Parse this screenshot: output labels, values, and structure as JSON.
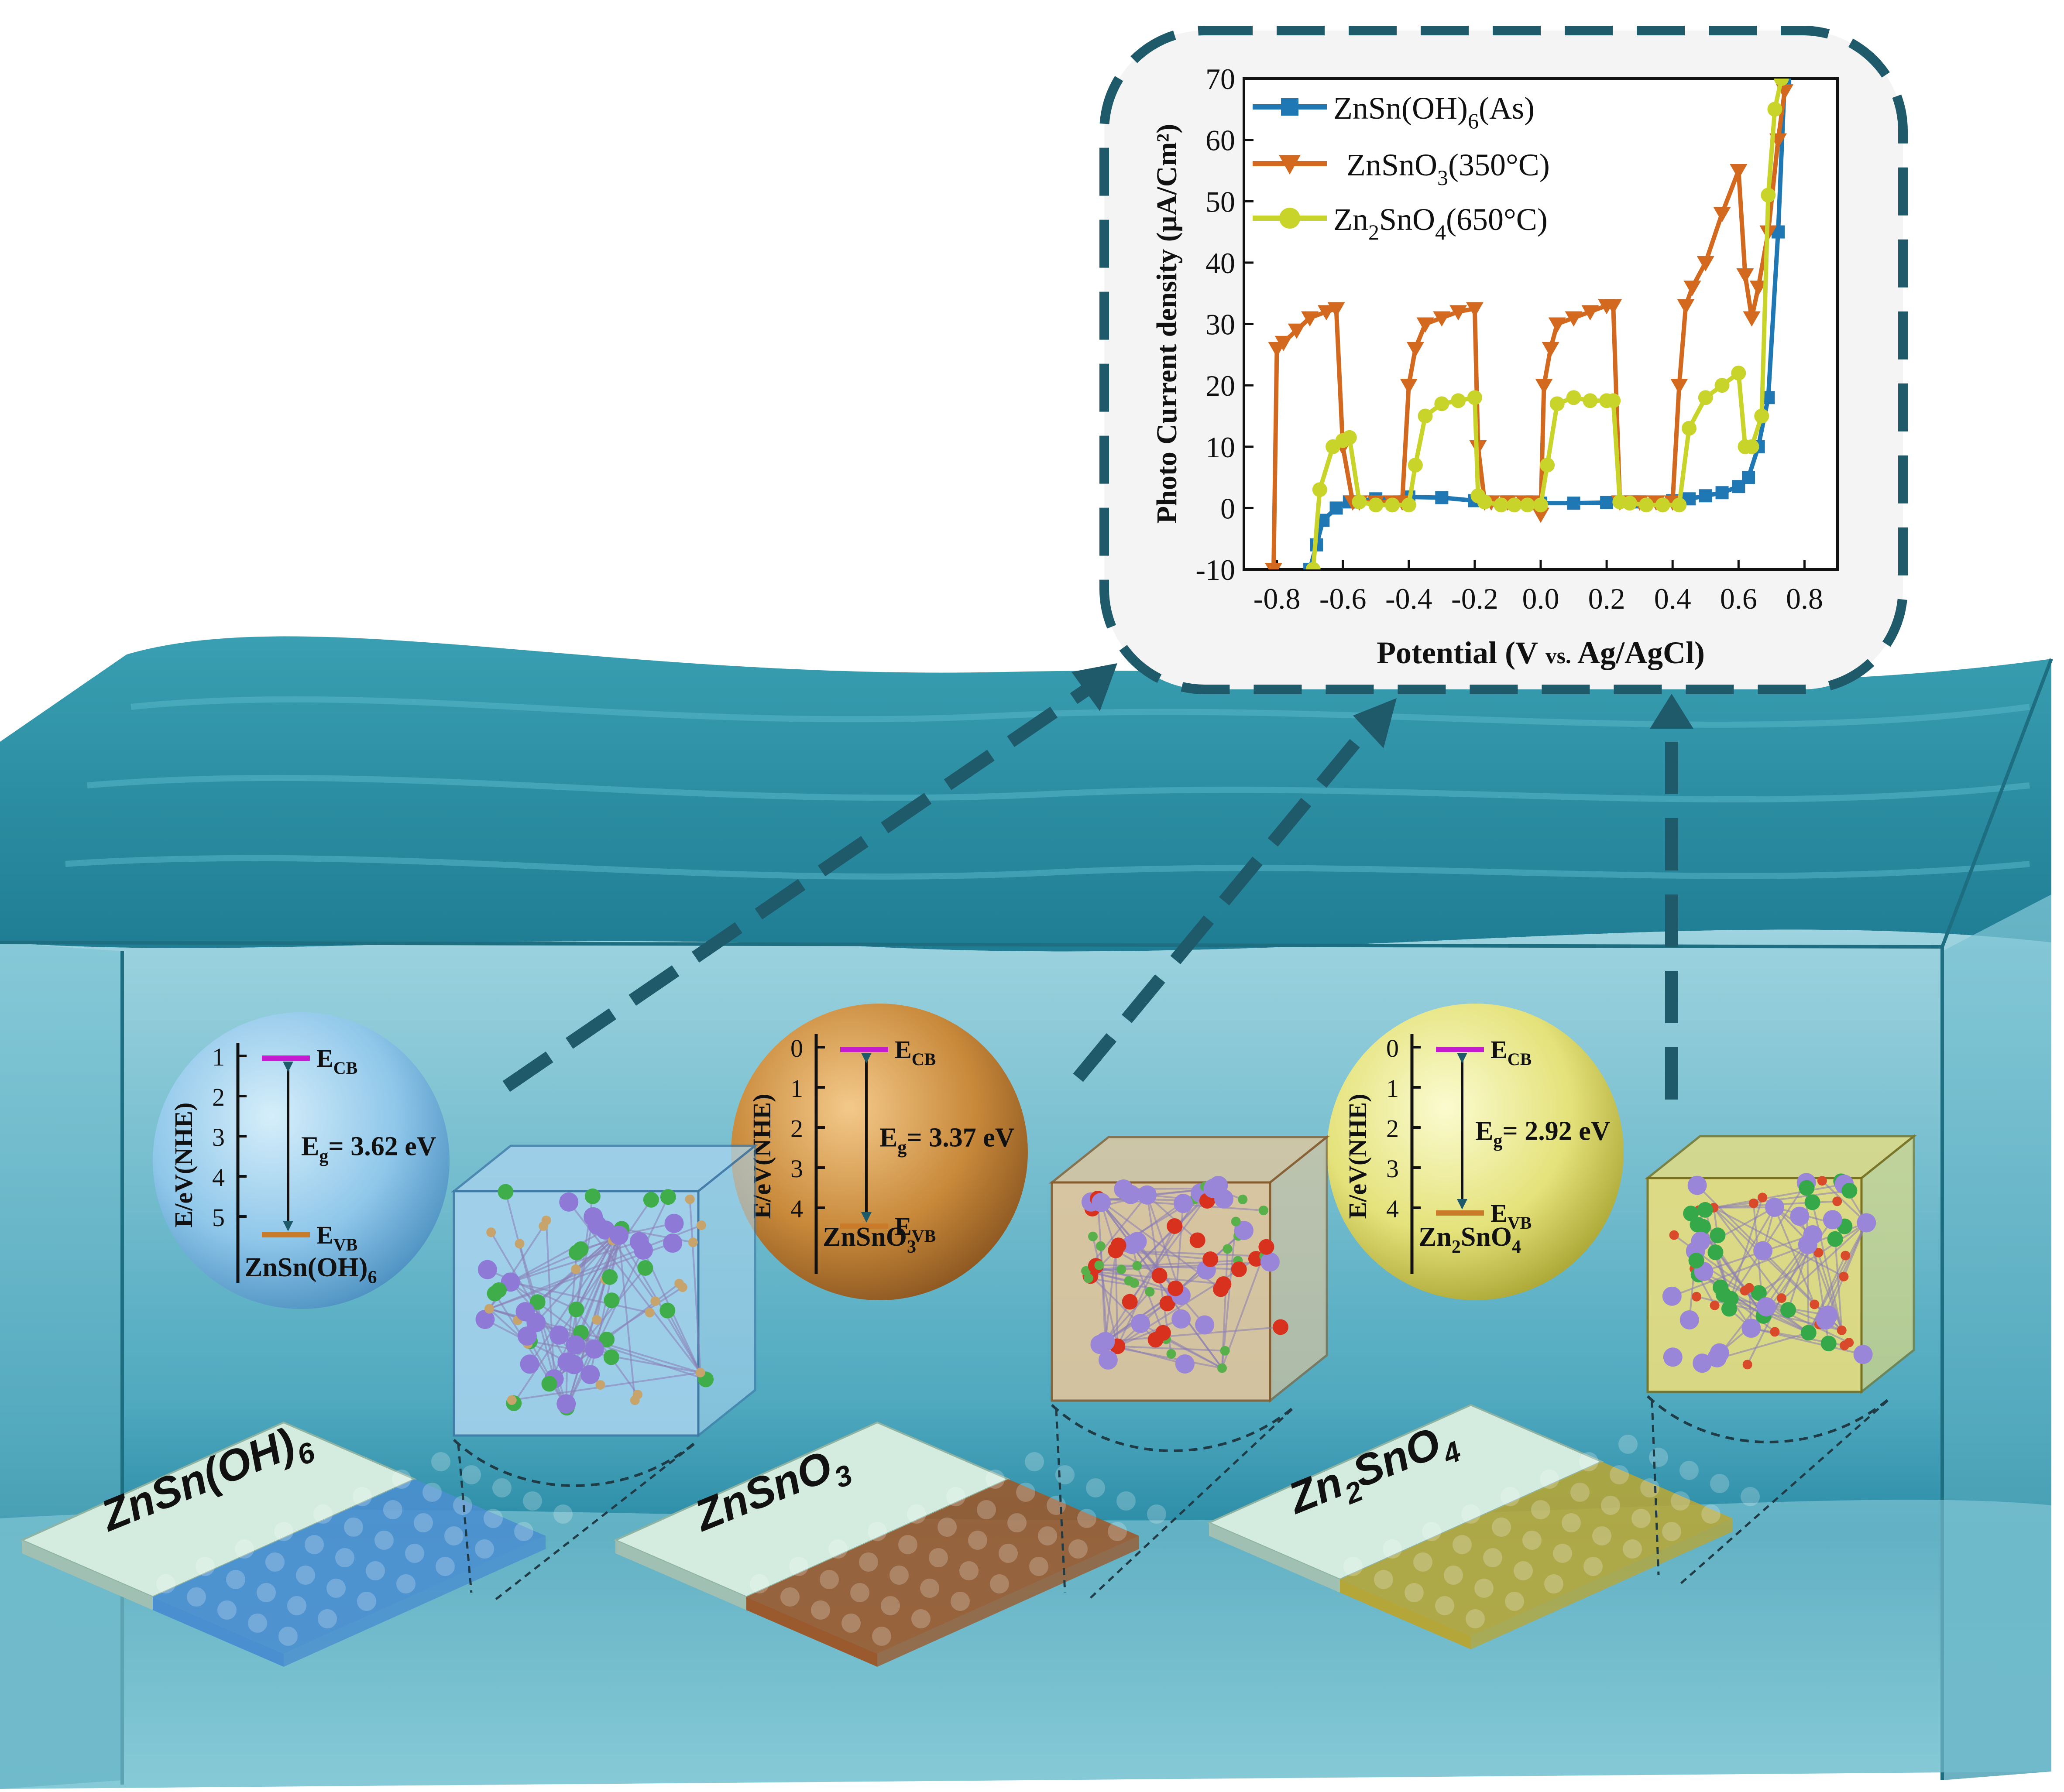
{
  "chart_data": {
    "type": "line",
    "xlabel": "Potential (V vs. Ag/AgCl)",
    "xlabel_parts": {
      "main": "Potential (V ",
      "vs": "vs.",
      "rest": " Ag/AgCl)"
    },
    "ylabel": "Photo Current density (µA/Cm²)",
    "xlim": [
      -0.9,
      0.9
    ],
    "ylim": [
      -10,
      70
    ],
    "xticks": [
      "-0.8",
      "-0.6",
      "-0.4",
      "-0.2",
      "0.0",
      "0.2",
      "0.4",
      "0.6",
      "0.8"
    ],
    "xtick_values": [
      -0.8,
      -0.6,
      -0.4,
      -0.2,
      0.0,
      0.2,
      0.4,
      0.6,
      0.8
    ],
    "yticks": [
      "-10",
      "0",
      "10",
      "20",
      "30",
      "40",
      "50",
      "60",
      "70"
    ],
    "ytick_values": [
      -10,
      0,
      10,
      20,
      30,
      40,
      50,
      60,
      70
    ],
    "legend_position": "top-left",
    "series": [
      {
        "name": "ZnSn(OH)6(As)",
        "label_parts": {
          "a": "ZnSn(OH)",
          "sub": "6",
          "b": "(As)"
        },
        "color": "#1f77b4",
        "marker": "square",
        "x": [
          -0.7,
          -0.68,
          -0.66,
          -0.62,
          -0.58,
          -0.5,
          -0.4,
          -0.3,
          -0.2,
          -0.1,
          0.0,
          0.1,
          0.2,
          0.3,
          0.4,
          0.45,
          0.5,
          0.55,
          0.6,
          0.63,
          0.66,
          0.69,
          0.72,
          0.74
        ],
        "y": [
          -10,
          -6,
          -2,
          0,
          1,
          1.5,
          1.8,
          1.7,
          1.2,
          1.0,
          0.8,
          0.8,
          0.9,
          1.0,
          1.2,
          1.5,
          2.0,
          2.5,
          3.5,
          5,
          10,
          18,
          45,
          70
        ]
      },
      {
        "name": "ZnSnO3(350°C)",
        "label_parts": {
          "a": "ZnSnO",
          "sub": "3",
          "b": "(350°C)"
        },
        "color": "#d2691e",
        "marker": "triangle-down",
        "x": [
          -0.81,
          -0.8,
          -0.78,
          -0.74,
          -0.7,
          -0.65,
          -0.62,
          -0.6,
          -0.57,
          -0.55,
          -0.5,
          -0.45,
          -0.42,
          -0.4,
          -0.38,
          -0.35,
          -0.3,
          -0.25,
          -0.2,
          -0.19,
          -0.17,
          -0.15,
          -0.1,
          -0.05,
          -0.02,
          0.0,
          0.01,
          0.03,
          0.05,
          0.1,
          0.15,
          0.2,
          0.22,
          0.24,
          0.27,
          0.3,
          0.35,
          0.4,
          0.42,
          0.44,
          0.46,
          0.5,
          0.55,
          0.6,
          0.62,
          0.64,
          0.66,
          0.69,
          0.72,
          0.74
        ],
        "y": [
          -10,
          26,
          27,
          29,
          31,
          32,
          32.5,
          10,
          1,
          1,
          1,
          1,
          1,
          20,
          26,
          30,
          31,
          32,
          32.5,
          10,
          1,
          1,
          1,
          1,
          1,
          -1,
          20,
          26,
          30,
          31,
          32,
          33,
          33,
          1,
          1,
          1,
          1,
          1,
          20,
          33,
          36,
          40,
          48,
          55,
          38,
          31,
          36,
          45,
          60,
          68
        ]
      },
      {
        "name": "Zn2SnO4(650°C)",
        "label_parts": {
          "a": "Zn",
          "sub1": "2",
          "b": "SnO",
          "sub2": "4",
          "c": "(650°C)"
        },
        "color": "#c9d42a",
        "marker": "circle",
        "x": [
          -0.69,
          -0.67,
          -0.63,
          -0.6,
          -0.58,
          -0.55,
          -0.5,
          -0.45,
          -0.4,
          -0.38,
          -0.35,
          -0.3,
          -0.25,
          -0.2,
          -0.19,
          -0.17,
          -0.12,
          -0.08,
          -0.04,
          0.0,
          0.02,
          0.05,
          0.1,
          0.15,
          0.2,
          0.22,
          0.24,
          0.27,
          0.32,
          0.37,
          0.42,
          0.45,
          0.5,
          0.55,
          0.6,
          0.62,
          0.64,
          0.67,
          0.69,
          0.71,
          0.73
        ],
        "y": [
          -10,
          3,
          10,
          11,
          11.5,
          1,
          0.5,
          0.5,
          0.5,
          7,
          15,
          17,
          17.5,
          18,
          2,
          1,
          0.5,
          0.5,
          0.5,
          0.5,
          7,
          17,
          18,
          17.5,
          17.5,
          17.5,
          1,
          0.8,
          0.5,
          0.5,
          0.5,
          13,
          18,
          20,
          22,
          10,
          10,
          15,
          51,
          65,
          70
        ]
      }
    ]
  },
  "materials": [
    {
      "id": "zhs",
      "name": "ZnSn(OH)6",
      "name_parts": {
        "a": "ZnSn(OH)",
        "sub": "6"
      },
      "eg": "3.62 eV",
      "ecb": "E",
      "ecb_sub": "CB",
      "evb": "E",
      "evb_sub": "VB",
      "eg_label": "E",
      "eg_sub": "g",
      "ylabel": "E/eV(NHE)",
      "ticks": [
        "1",
        "2",
        "3",
        "4",
        "5"
      ],
      "color": "#8fc7ea",
      "film_color": "#4a8fcf"
    },
    {
      "id": "zso3",
      "name": "ZnSnO3",
      "name_parts": {
        "a": "ZnSnO",
        "sub": "3"
      },
      "eg": "3.37 eV",
      "ecb": "E",
      "ecb_sub": "CB",
      "evb": "E",
      "evb_sub": "VB",
      "eg_label": "E",
      "eg_sub": "g",
      "ylabel": "E/eV(NHE)",
      "ticks": [
        "0",
        "1",
        "2",
        "3",
        "4"
      ],
      "color": "#c8893a",
      "film_color": "#9a5a2e"
    },
    {
      "id": "z2so4",
      "name": "Zn2SnO4",
      "name_parts": {
        "a": "Zn",
        "sub1": "2",
        "b": "SnO",
        "sub2": "4"
      },
      "eg": "2.92 eV",
      "ecb": "E",
      "ecb_sub": "CB",
      "evb": "E",
      "evb_sub": "VB",
      "eg_label": "E",
      "eg_sub": "g",
      "ylabel": "E/eV(NHE)",
      "ticks": [
        "0",
        "1",
        "2",
        "3",
        "4"
      ],
      "color": "#e4e27a",
      "film_color": "#b5a63a"
    }
  ],
  "film_labels": [
    {
      "a": "ZnSn(OH)",
      "sub": "6"
    },
    {
      "a": "ZnSnO",
      "sub": "3"
    },
    {
      "a": "Zn",
      "sub1": "2",
      "b": "SnO",
      "sub2": "4"
    }
  ],
  "colors": {
    "water_top": "#2f8fa3",
    "water_front": "#6fc3d3",
    "callout_border": "#1f5a6a",
    "callout_bg": "#f4f4f4",
    "arrow": "#1f5a6a"
  }
}
